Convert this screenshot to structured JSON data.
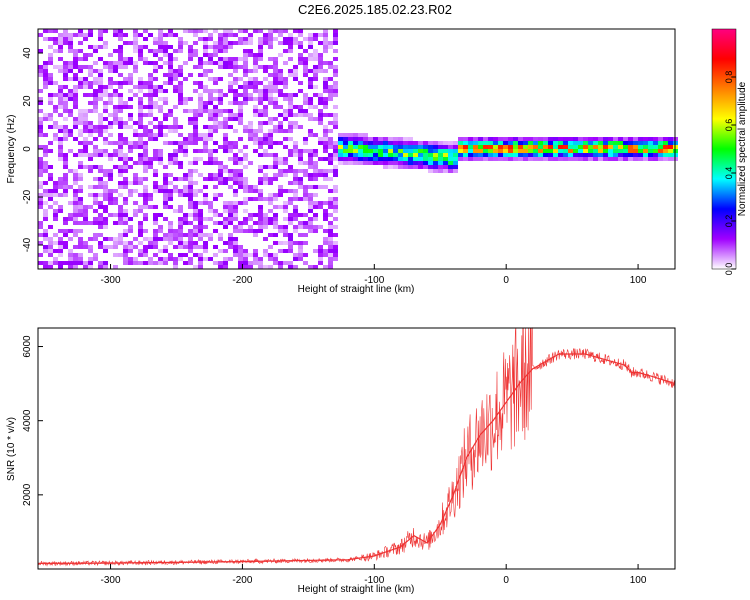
{
  "figure": {
    "title": "C2E6.2025.185.02.23.R02"
  },
  "chart_data": [
    {
      "type": "heatmap",
      "xlabel": "Height of straight line (km)",
      "ylabel": "Frequency (Hz)",
      "xlim": [
        -355,
        128
      ],
      "ylim": [
        -50,
        50
      ],
      "xticks": [
        -300,
        -200,
        -100,
        0,
        100
      ],
      "yticks": [
        -40,
        -20,
        0,
        20,
        40
      ],
      "colorbar": {
        "label": "Normalized spectral amplitude",
        "range": [
          0.0,
          1.0
        ],
        "ticks": [
          0.0,
          0.2,
          0.4,
          0.6,
          0.8
        ],
        "colors": [
          "#ffffff",
          "#a000ff",
          "#0000ff",
          "#00ffff",
          "#00ff00",
          "#ffff00",
          "#ff8000",
          "#ff0000",
          "#ff0080"
        ]
      },
      "regions": [
        {
          "x_range": [
            -355,
            -130
          ],
          "y_range": [
            -50,
            50
          ],
          "amplitude": 0.1,
          "pattern": "noise"
        },
        {
          "x_range": [
            -130,
            -40
          ],
          "y_center": 0,
          "width_hz": 8,
          "amplitude": 0.5,
          "pattern": "band"
        },
        {
          "x_range": [
            -40,
            128
          ],
          "y_center": 1,
          "width_hz": 6,
          "amplitude": 0.7,
          "pattern": "band"
        }
      ],
      "grid": false
    },
    {
      "type": "line",
      "xlabel": "Height of straight line (km)",
      "ylabel": "SNR (10 * v/v)",
      "xlim": [
        -355,
        128
      ],
      "ylim": [
        0,
        6500
      ],
      "xticks": [
        -300,
        -200,
        -100,
        0,
        100
      ],
      "yticks": [
        2000,
        4000,
        6000
      ],
      "series": [
        {
          "color": "#ee3333",
          "x": [
            -355,
            -300,
            -200,
            -120,
            -100,
            -80,
            -70,
            -60,
            -50,
            -40,
            -30,
            -20,
            -10,
            0,
            10,
            20,
            30,
            40,
            60,
            80,
            90,
            95,
            100,
            110,
            128
          ],
          "values": [
            150,
            160,
            200,
            250,
            350,
            600,
            900,
            700,
            1200,
            2000,
            3000,
            3600,
            4000,
            4500,
            5000,
            5400,
            5600,
            5800,
            5800,
            5600,
            5500,
            5300,
            5300,
            5200,
            5000
          ]
        }
      ],
      "grid": false
    }
  ]
}
